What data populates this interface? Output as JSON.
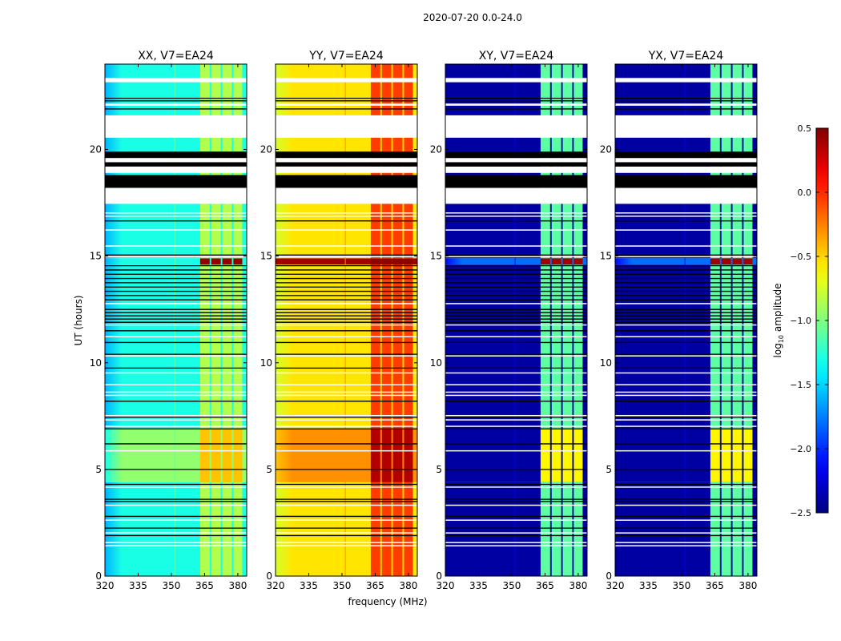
{
  "chart_data": {
    "type": "heatmap",
    "title": "2020-07-20 0.0-24.0",
    "xlabel": "frequency (MHz)",
    "ylabel": "UT (hours)",
    "xlim": [
      320,
      384
    ],
    "ylim": [
      0,
      24
    ],
    "xticks": [
      320,
      335,
      350,
      365,
      380
    ],
    "yticks": [
      0,
      5,
      10,
      15,
      20
    ],
    "colorbar": {
      "label_main": "log",
      "label_sub": "10",
      "label_rest": " amplitude",
      "range": [
        -2.5,
        0.5
      ],
      "ticks": [
        "0.5",
        "0.0",
        "−0.5",
        "−1.0",
        "−1.5",
        "−2.0",
        "−2.5"
      ],
      "tick_values": [
        0.5,
        0.0,
        -0.5,
        -1.0,
        -1.5,
        -2.0,
        -2.5
      ],
      "colormap": "jet"
    },
    "bands_mhz": [
      [
        363,
        367.3
      ],
      [
        368,
        372.3
      ],
      [
        373,
        377.3
      ],
      [
        378,
        382
      ]
    ],
    "time_regions": [
      {
        "range": [
          0,
          4.4
        ],
        "state": "normal"
      },
      {
        "range": [
          4.4,
          6.9
        ],
        "state": "active"
      },
      {
        "range": [
          6.9,
          14.6
        ],
        "state": "normal"
      },
      {
        "range": [
          14.6,
          14.9
        ],
        "state": "burst"
      },
      {
        "range": [
          14.9,
          24
        ],
        "state": "normal"
      }
    ],
    "flagged_white": [
      [
        23.15,
        23.35
      ],
      [
        22.05,
        22.15
      ],
      [
        20.55,
        21.6
      ],
      [
        19.4,
        19.6
      ],
      [
        18.9,
        19.2
      ],
      [
        17.45,
        18.2
      ],
      [
        17.0,
        17.05
      ],
      [
        16.85,
        16.9
      ],
      [
        16.2,
        16.25
      ],
      [
        15.45,
        15.5
      ],
      [
        14.95,
        15.0
      ],
      [
        12.75,
        12.8
      ],
      [
        11.75,
        11.8
      ],
      [
        11.2,
        11.25
      ],
      [
        10.3,
        10.35
      ],
      [
        9.5,
        9.55
      ],
      [
        8.95,
        9.0
      ],
      [
        8.6,
        8.65
      ],
      [
        8.45,
        8.5
      ],
      [
        7.5,
        7.55
      ],
      [
        7.3,
        7.35
      ],
      [
        7.0,
        7.05
      ],
      [
        5.85,
        5.9
      ],
      [
        4.15,
        4.2
      ],
      [
        3.3,
        3.35
      ],
      [
        2.6,
        2.65
      ],
      [
        2.0,
        2.05
      ],
      [
        1.55,
        1.6
      ],
      [
        1.4,
        1.45
      ]
    ],
    "flagged_black": [
      [
        19.6,
        19.9
      ],
      [
        19.2,
        19.4
      ],
      [
        18.2,
        18.8
      ]
    ],
    "black_lines": [
      22.4,
      22.28,
      21.9,
      16.65,
      15.05,
      14.55,
      14.35,
      14.15,
      13.95,
      13.75,
      13.55,
      13.35,
      13.15,
      12.95,
      12.5,
      12.35,
      12.2,
      12.05,
      11.9,
      11.5,
      10.95,
      10.4,
      9.75,
      8.2,
      7.45,
      6.9,
      6.2,
      5.0,
      4.3,
      3.6,
      3.5,
      2.8,
      2.25,
      1.9
    ],
    "panels": [
      {
        "title": "XX, V7=EA24",
        "levels": {
          "normal": {
            "edge": -1.6,
            "bg": -1.3,
            "band": -0.85
          },
          "active": {
            "edge": -1.3,
            "bg": -0.95,
            "band": -0.45
          },
          "burst": {
            "edge": -1.6,
            "bg": -1.3,
            "band": 0.45
          }
        }
      },
      {
        "title": "YY, V7=EA24",
        "levels": {
          "normal": {
            "edge": -0.75,
            "bg": -0.55,
            "band": -0.05
          },
          "active": {
            "edge": -0.45,
            "bg": -0.3,
            "band": 0.35
          },
          "burst": {
            "edge": 0.4,
            "bg": 0.4,
            "band": 0.45
          }
        }
      },
      {
        "title": "XY, V7=EA24",
        "levels": {
          "normal": {
            "edge": -2.4,
            "bg": -2.4,
            "band": -1.1
          },
          "active": {
            "edge": -2.4,
            "bg": -2.4,
            "band": -0.6
          },
          "burst": {
            "edge": -2.1,
            "bg": -1.8,
            "band": 0.4
          }
        }
      },
      {
        "title": "YX, V7=EA24",
        "levels": {
          "normal": {
            "edge": -2.4,
            "bg": -2.4,
            "band": -1.1
          },
          "active": {
            "edge": -2.4,
            "bg": -2.4,
            "band": -0.6
          },
          "burst": {
            "edge": -2.1,
            "bg": -1.8,
            "band": 0.4
          }
        }
      }
    ]
  }
}
